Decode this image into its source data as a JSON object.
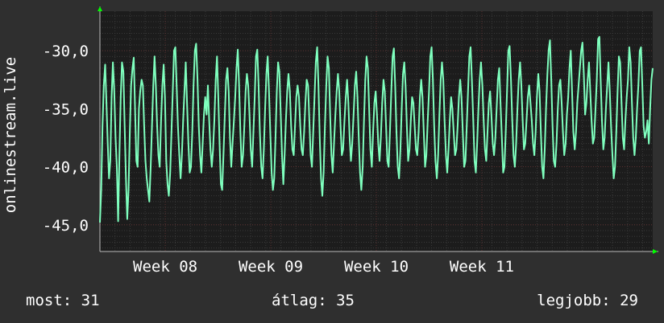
{
  "chart_data": {
    "type": "line",
    "title": "",
    "xlabel": "",
    "ylabel": "onlinestream.live",
    "ylim": [
      -47.3,
      -26.6
    ],
    "yticks": [
      -45.0,
      -40.0,
      -35.0,
      -30.0
    ],
    "ytick_labels": [
      "-45,0",
      "-40,0",
      "-35,0",
      "-30,0"
    ],
    "xlim": [
      0,
      440
    ],
    "xticks": [
      {
        "x": 52,
        "label": "Week 08"
      },
      {
        "x": 136,
        "label": "Week 09"
      },
      {
        "x": 220,
        "label": "Week 10"
      },
      {
        "x": 304,
        "label": "Week 11"
      }
    ],
    "grid": true,
    "colors": {
      "background": "#2f2f2f",
      "plot": "#1c1c1c",
      "grid": "#3a3a3a",
      "line": "#7fffbe",
      "axis": "#00ff00"
    },
    "series": [
      {
        "values": [
          -44.8,
          -42.0,
          -36.5,
          -33.0,
          -31.2,
          -34.5,
          -38.0,
          -41.0,
          -39.5,
          -34.0,
          -31.0,
          -33.5,
          -37.5,
          -40.0,
          -44.7,
          -39.0,
          -34.0,
          -31.0,
          -31.8,
          -36.5,
          -41.0,
          -44.5,
          -42.0,
          -37.0,
          -33.0,
          -31.5,
          -30.6,
          -35.0,
          -39.5,
          -40.0,
          -35.0,
          -33.5,
          -32.5,
          -33.0,
          -36.5,
          -39.5,
          -41.0,
          -42.0,
          -43.0,
          -40.0,
          -36.5,
          -33.0,
          -30.5,
          -33.0,
          -36.5,
          -39.0,
          -40.0,
          -36.0,
          -33.0,
          -31.2,
          -34.0,
          -39.5,
          -41.5,
          -42.5,
          -40.5,
          -37.0,
          -33.5,
          -30.0,
          -29.7,
          -33.0,
          -36.5,
          -39.0,
          -41.0,
          -39.0,
          -36.0,
          -33.5,
          -31.0,
          -34.5,
          -38.0,
          -40.5,
          -40.0,
          -37.0,
          -33.0,
          -30.0,
          -29.4,
          -32.5,
          -36.5,
          -39.0,
          -40.5,
          -38.0,
          -35.5,
          -34.0,
          -35.5,
          -33.0,
          -36.0,
          -38.5,
          -40.0,
          -38.5,
          -36.0,
          -32.5,
          -30.5,
          -34.0,
          -38.0,
          -41.5,
          -42.0,
          -39.0,
          -35.5,
          -32.5,
          -31.5,
          -33.5,
          -37.5,
          -40.0,
          -38.0,
          -36.0,
          -34.0,
          -31.5,
          -29.9,
          -33.0,
          -37.0,
          -40.0,
          -39.0,
          -36.5,
          -33.5,
          -32.0,
          -33.0,
          -35.5,
          -38.5,
          -40.0,
          -37.0,
          -34.0,
          -30.5,
          -29.9,
          -33.0,
          -37.0,
          -40.0,
          -41.0,
          -38.5,
          -35.0,
          -32.0,
          -30.5,
          -33.5,
          -37.0,
          -40.5,
          -42.0,
          -41.0,
          -37.5,
          -33.5,
          -31.0,
          -31.8,
          -35.5,
          -39.0,
          -41.5,
          -39.0,
          -36.0,
          -33.5,
          -32.0,
          -33.5,
          -36.5,
          -38.5,
          -39.0,
          -36.5,
          -34.0,
          -33.0,
          -34.0,
          -36.5,
          -38.5,
          -39.0,
          -37.0,
          -34.5,
          -32.5,
          -33.0,
          -36.0,
          -39.0,
          -40.0,
          -37.0,
          -34.0,
          -31.0,
          -29.7,
          -33.0,
          -37.5,
          -41.0,
          -42.5,
          -40.5,
          -36.5,
          -33.0,
          -30.5,
          -31.5,
          -35.5,
          -39.0,
          -40.5,
          -38.0,
          -35.5,
          -33.5,
          -32.0,
          -33.5,
          -36.5,
          -39.0,
          -38.5,
          -36.0,
          -34.0,
          -32.5,
          -34.5,
          -37.5,
          -39.5,
          -38.0,
          -35.5,
          -33.0,
          -31.8,
          -34.0,
          -37.5,
          -40.5,
          -42.0,
          -40.0,
          -36.0,
          -32.5,
          -30.5,
          -31.5,
          -35.0,
          -38.5,
          -40.0,
          -37.0,
          -34.5,
          -33.5,
          -35.5,
          -38.0,
          -39.5,
          -37.5,
          -34.5,
          -32.5,
          -33.5,
          -36.5,
          -39.5,
          -40.0,
          -37.0,
          -33.5,
          -30.5,
          -29.8,
          -33.0,
          -37.0,
          -40.0,
          -41.0,
          -38.5,
          -35.0,
          -32.0,
          -31.0,
          -33.0,
          -36.5,
          -39.5,
          -38.5,
          -36.0,
          -34.0,
          -34.5,
          -36.5,
          -38.5,
          -39.0,
          -37.0,
          -34.0,
          -32.5,
          -34.0,
          -37.0,
          -40.0,
          -39.0,
          -36.0,
          -33.5,
          -30.5,
          -29.7,
          -32.5,
          -36.5,
          -39.5,
          -41.0,
          -39.0,
          -35.5,
          -32.5,
          -31.0,
          -32.5,
          -36.0,
          -39.0,
          -40.5,
          -38.5,
          -36.0,
          -34.0,
          -35.0,
          -37.0,
          -39.0,
          -38.5,
          -36.5,
          -34.0,
          -32.5,
          -34.0,
          -37.0,
          -40.0,
          -39.5,
          -36.5,
          -33.5,
          -30.5,
          -29.7,
          -32.5,
          -36.0,
          -39.5,
          -40.5,
          -38.0,
          -35.0,
          -32.5,
          -31.0,
          -33.0,
          -36.0,
          -38.5,
          -39.5,
          -37.0,
          -34.5,
          -33.5,
          -35.5,
          -38.0,
          -39.0,
          -37.5,
          -35.0,
          -32.5,
          -31.5,
          -34.5,
          -37.5,
          -40.5,
          -40.0,
          -37.0,
          -33.5,
          -30.0,
          -29.6,
          -32.5,
          -36.0,
          -39.0,
          -40.0,
          -38.0,
          -35.0,
          -32.5,
          -31.0,
          -33.0,
          -36.0,
          -38.5,
          -38.0,
          -36.0,
          -34.0,
          -33.0,
          -34.5,
          -36.0,
          -38.0,
          -39.0,
          -37.0,
          -34.0,
          -32.0,
          -33.5,
          -37.0,
          -40.0,
          -41.0,
          -38.5,
          -35.0,
          -32.0,
          -29.9,
          -29.1,
          -32.5,
          -36.5,
          -39.5,
          -40.0,
          -38.0,
          -35.0,
          -33.0,
          -32.5,
          -34.5,
          -37.0,
          -39.0,
          -38.0,
          -35.5,
          -34.0,
          -31.5,
          -30.0,
          -33.5,
          -37.0,
          -38.5,
          -37.0,
          -34.5,
          -33.0,
          -31.5,
          -30.0,
          -29.3,
          -32.0,
          -35.5,
          -34.5,
          -32.5,
          -31.0,
          -33.5,
          -36.0,
          -38.0,
          -37.5,
          -35.0,
          -32.5,
          -29.0,
          -28.8,
          -32.5,
          -36.0,
          -38.5,
          -37.5,
          -35.0,
          -33.0,
          -31.0,
          -33.5,
          -36.5,
          -39.0,
          -41.0,
          -40.0,
          -37.0,
          -33.5,
          -30.5,
          -31.0,
          -34.5,
          -37.5,
          -38.5,
          -36.0,
          -34.0,
          -32.5,
          -29.7,
          -31.0,
          -34.5,
          -37.5,
          -39.0,
          -37.5,
          -35.0,
          -33.0,
          -30.0,
          -29.7,
          -33.0,
          -36.5,
          -37.5,
          -37.0,
          -36.0,
          -38.0,
          -35.0,
          -32.5,
          -31.5
        ]
      }
    ]
  },
  "stats": {
    "current": "most: 31",
    "average": "átlag: 35",
    "best": "legjobb: 29"
  }
}
